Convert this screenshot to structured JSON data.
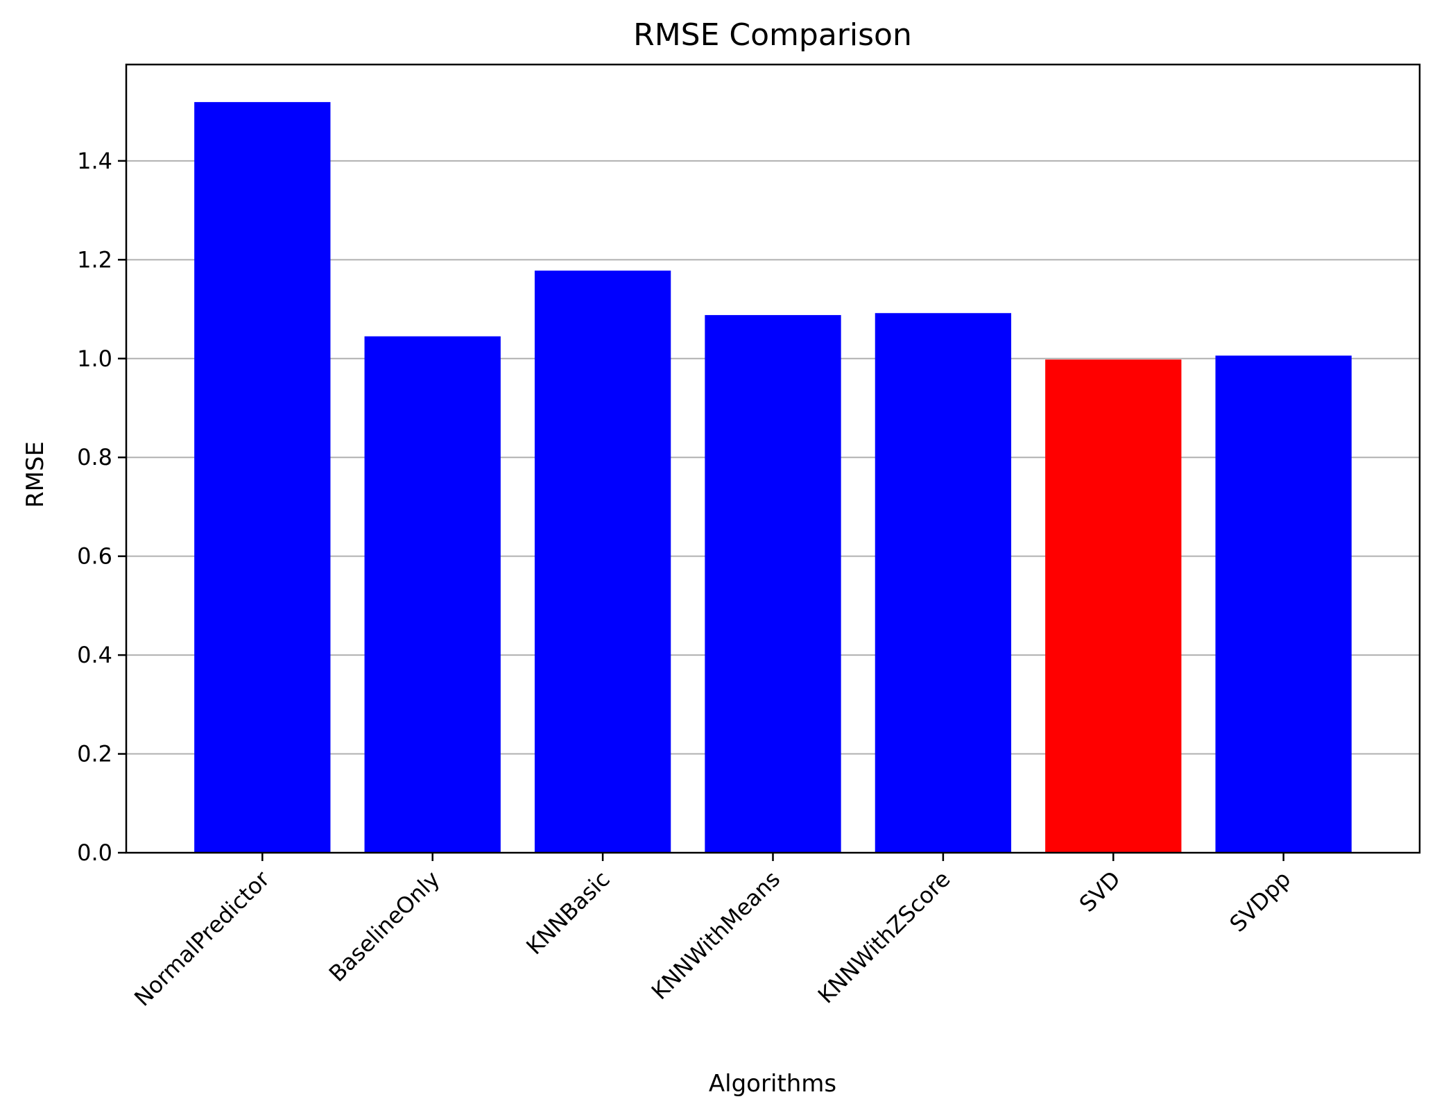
{
  "chart_data": {
    "type": "bar",
    "title": "RMSE Comparison",
    "xlabel": "Algorithms",
    "ylabel": "RMSE",
    "categories": [
      "NormalPredictor",
      "BaselineOnly",
      "KNNBasic",
      "KNNWithMeans",
      "KNNWithZScore",
      "SVD",
      "SVDpp"
    ],
    "values": [
      1.519,
      1.045,
      1.178,
      1.088,
      1.092,
      0.998,
      1.006
    ],
    "bar_colors": [
      "#0000ff",
      "#0000ff",
      "#0000ff",
      "#0000ff",
      "#0000ff",
      "#ff0000",
      "#0000ff"
    ],
    "ylim": [
      0,
      1.595
    ],
    "yticks": [
      0.0,
      0.2,
      0.4,
      0.6,
      0.8,
      1.0,
      1.2,
      1.4
    ],
    "ytick_labels": [
      "0.0",
      "0.2",
      "0.4",
      "0.6",
      "0.8",
      "1.0",
      "1.2",
      "1.4"
    ],
    "grid": "y",
    "grid_color": "#b0b0b0",
    "legend": "none"
  }
}
